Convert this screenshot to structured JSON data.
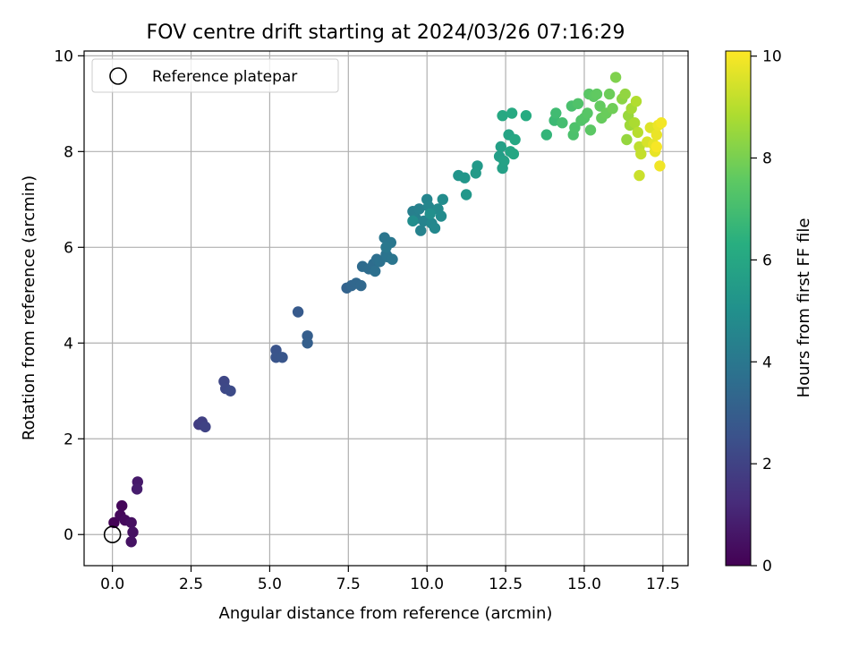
{
  "chart_data": {
    "type": "scatter",
    "title": "FOV centre drift starting at 2024/03/26 07:16:29",
    "xlabel": "Angular distance from reference (arcmin)",
    "ylabel": "Rotation from reference (arcmin)",
    "colorbar_label": "Hours from first FF file",
    "colormap": "viridis",
    "xlim": [
      -0.9,
      18.3
    ],
    "ylim": [
      -0.65,
      10.1
    ],
    "clim": [
      0,
      10.1
    ],
    "x_ticks": [
      0.0,
      2.5,
      5.0,
      7.5,
      10.0,
      12.5,
      15.0,
      17.5
    ],
    "x_tick_labels": [
      "0.0",
      "2.5",
      "5.0",
      "7.5",
      "10.0",
      "12.5",
      "15.0",
      "17.5"
    ],
    "y_ticks": [
      0,
      2,
      4,
      6,
      8,
      10
    ],
    "y_tick_labels": [
      "0",
      "2",
      "4",
      "6",
      "8",
      "10"
    ],
    "colorbar_ticks": [
      0,
      2,
      4,
      6,
      8,
      10
    ],
    "colorbar_tick_labels": [
      "0",
      "2",
      "4",
      "6",
      "8",
      "10"
    ],
    "grid": true,
    "legend_position": "top-left",
    "legend": [
      {
        "label": "Reference platepar",
        "marker": "open-circle"
      }
    ],
    "reference_point": {
      "x": 0.0,
      "y": 0.0
    },
    "points": [
      [
        0.05,
        0.25,
        0.05
      ],
      [
        0.3,
        0.6,
        0.15
      ],
      [
        0.25,
        0.4,
        0.2
      ],
      [
        0.4,
        0.3,
        0.3
      ],
      [
        0.6,
        0.25,
        0.4
      ],
      [
        0.65,
        0.05,
        0.45
      ],
      [
        0.6,
        -0.15,
        0.5
      ],
      [
        0.8,
        1.1,
        0.7
      ],
      [
        0.78,
        0.95,
        0.8
      ],
      [
        2.75,
        2.3,
        1.8
      ],
      [
        2.85,
        2.35,
        1.9
      ],
      [
        2.95,
        2.25,
        2.0
      ],
      [
        3.55,
        3.2,
        2.15
      ],
      [
        3.6,
        3.05,
        2.2
      ],
      [
        3.75,
        3.0,
        2.3
      ],
      [
        5.2,
        3.85,
        2.6
      ],
      [
        5.2,
        3.7,
        2.65
      ],
      [
        5.4,
        3.7,
        2.7
      ],
      [
        5.9,
        4.65,
        2.85
      ],
      [
        6.2,
        4.15,
        3.0
      ],
      [
        6.2,
        4.0,
        3.05
      ],
      [
        7.45,
        5.15,
        3.2
      ],
      [
        7.6,
        5.2,
        3.3
      ],
      [
        7.75,
        5.25,
        3.35
      ],
      [
        7.9,
        5.2,
        3.4
      ],
      [
        7.95,
        5.6,
        3.5
      ],
      [
        8.15,
        5.55,
        3.55
      ],
      [
        8.3,
        5.65,
        3.6
      ],
      [
        8.4,
        5.75,
        3.65
      ],
      [
        8.35,
        5.5,
        3.7
      ],
      [
        8.5,
        5.7,
        3.75
      ],
      [
        8.7,
        5.85,
        3.8
      ],
      [
        8.75,
        5.8,
        3.85
      ],
      [
        8.9,
        5.75,
        3.9
      ],
      [
        8.65,
        6.2,
        3.95
      ],
      [
        8.85,
        6.1,
        4.0
      ],
      [
        8.7,
        6.0,
        4.05
      ],
      [
        9.55,
        6.75,
        4.3
      ],
      [
        9.65,
        6.6,
        4.35
      ],
      [
        9.75,
        6.8,
        4.4
      ],
      [
        9.8,
        6.35,
        4.45
      ],
      [
        9.9,
        6.55,
        4.5
      ],
      [
        10.0,
        7.0,
        4.55
      ],
      [
        10.05,
        6.85,
        4.6
      ],
      [
        10.15,
        6.5,
        4.65
      ],
      [
        10.25,
        6.4,
        4.7
      ],
      [
        10.35,
        6.8,
        4.75
      ],
      [
        10.45,
        6.65,
        4.8
      ],
      [
        10.5,
        7.0,
        4.85
      ],
      [
        9.55,
        6.55,
        4.9
      ],
      [
        10.1,
        6.7,
        4.95
      ],
      [
        11.0,
        7.5,
        5.2
      ],
      [
        11.2,
        7.45,
        5.25
      ],
      [
        11.25,
        7.1,
        5.3
      ],
      [
        11.6,
        7.7,
        5.4
      ],
      [
        11.55,
        7.55,
        5.45
      ],
      [
        12.3,
        7.9,
        5.6
      ],
      [
        12.35,
        8.1,
        5.65
      ],
      [
        12.4,
        7.65,
        5.7
      ],
      [
        12.45,
        7.8,
        5.75
      ],
      [
        12.6,
        8.35,
        5.85
      ],
      [
        12.65,
        8.0,
        5.9
      ],
      [
        12.75,
        7.95,
        5.95
      ],
      [
        12.8,
        8.25,
        6.0
      ],
      [
        12.4,
        8.75,
        6.05
      ],
      [
        12.7,
        8.8,
        6.1
      ],
      [
        13.15,
        8.75,
        6.2
      ],
      [
        13.8,
        8.35,
        6.6
      ],
      [
        14.05,
        8.65,
        6.8
      ],
      [
        14.1,
        8.8,
        6.9
      ],
      [
        14.3,
        8.6,
        7.0
      ],
      [
        14.6,
        8.95,
        7.1
      ],
      [
        14.65,
        8.35,
        7.15
      ],
      [
        14.7,
        8.5,
        7.2
      ],
      [
        14.8,
        9.0,
        7.25
      ],
      [
        14.9,
        8.65,
        7.3
      ],
      [
        15.0,
        8.7,
        7.35
      ],
      [
        15.1,
        8.8,
        7.4
      ],
      [
        15.15,
        9.2,
        7.45
      ],
      [
        15.2,
        8.45,
        7.5
      ],
      [
        15.3,
        9.15,
        7.55
      ],
      [
        15.4,
        9.2,
        7.6
      ],
      [
        15.5,
        8.95,
        7.65
      ],
      [
        15.55,
        8.7,
        7.7
      ],
      [
        15.7,
        8.8,
        7.75
      ],
      [
        15.8,
        9.2,
        7.8
      ],
      [
        15.9,
        8.9,
        7.85
      ],
      [
        16.0,
        9.55,
        8.1
      ],
      [
        16.2,
        9.1,
        8.3
      ],
      [
        16.3,
        9.2,
        8.4
      ],
      [
        16.35,
        8.25,
        8.45
      ],
      [
        16.4,
        8.75,
        8.5
      ],
      [
        16.45,
        8.55,
        8.6
      ],
      [
        16.5,
        8.9,
        8.7
      ],
      [
        16.6,
        8.6,
        8.8
      ],
      [
        16.65,
        9.05,
        8.9
      ],
      [
        16.7,
        8.4,
        9.0
      ],
      [
        16.75,
        8.1,
        9.1
      ],
      [
        16.8,
        7.95,
        9.2
      ],
      [
        16.75,
        7.5,
        9.3
      ],
      [
        17.0,
        8.2,
        9.5
      ],
      [
        17.1,
        8.5,
        9.6
      ],
      [
        17.2,
        8.15,
        9.7
      ],
      [
        17.25,
        8.0,
        9.75
      ],
      [
        17.3,
        8.35,
        9.8
      ],
      [
        17.35,
        8.55,
        9.85
      ],
      [
        17.4,
        7.7,
        9.9
      ],
      [
        17.45,
        8.6,
        9.95
      ],
      [
        17.3,
        8.1,
        10.0
      ]
    ]
  }
}
